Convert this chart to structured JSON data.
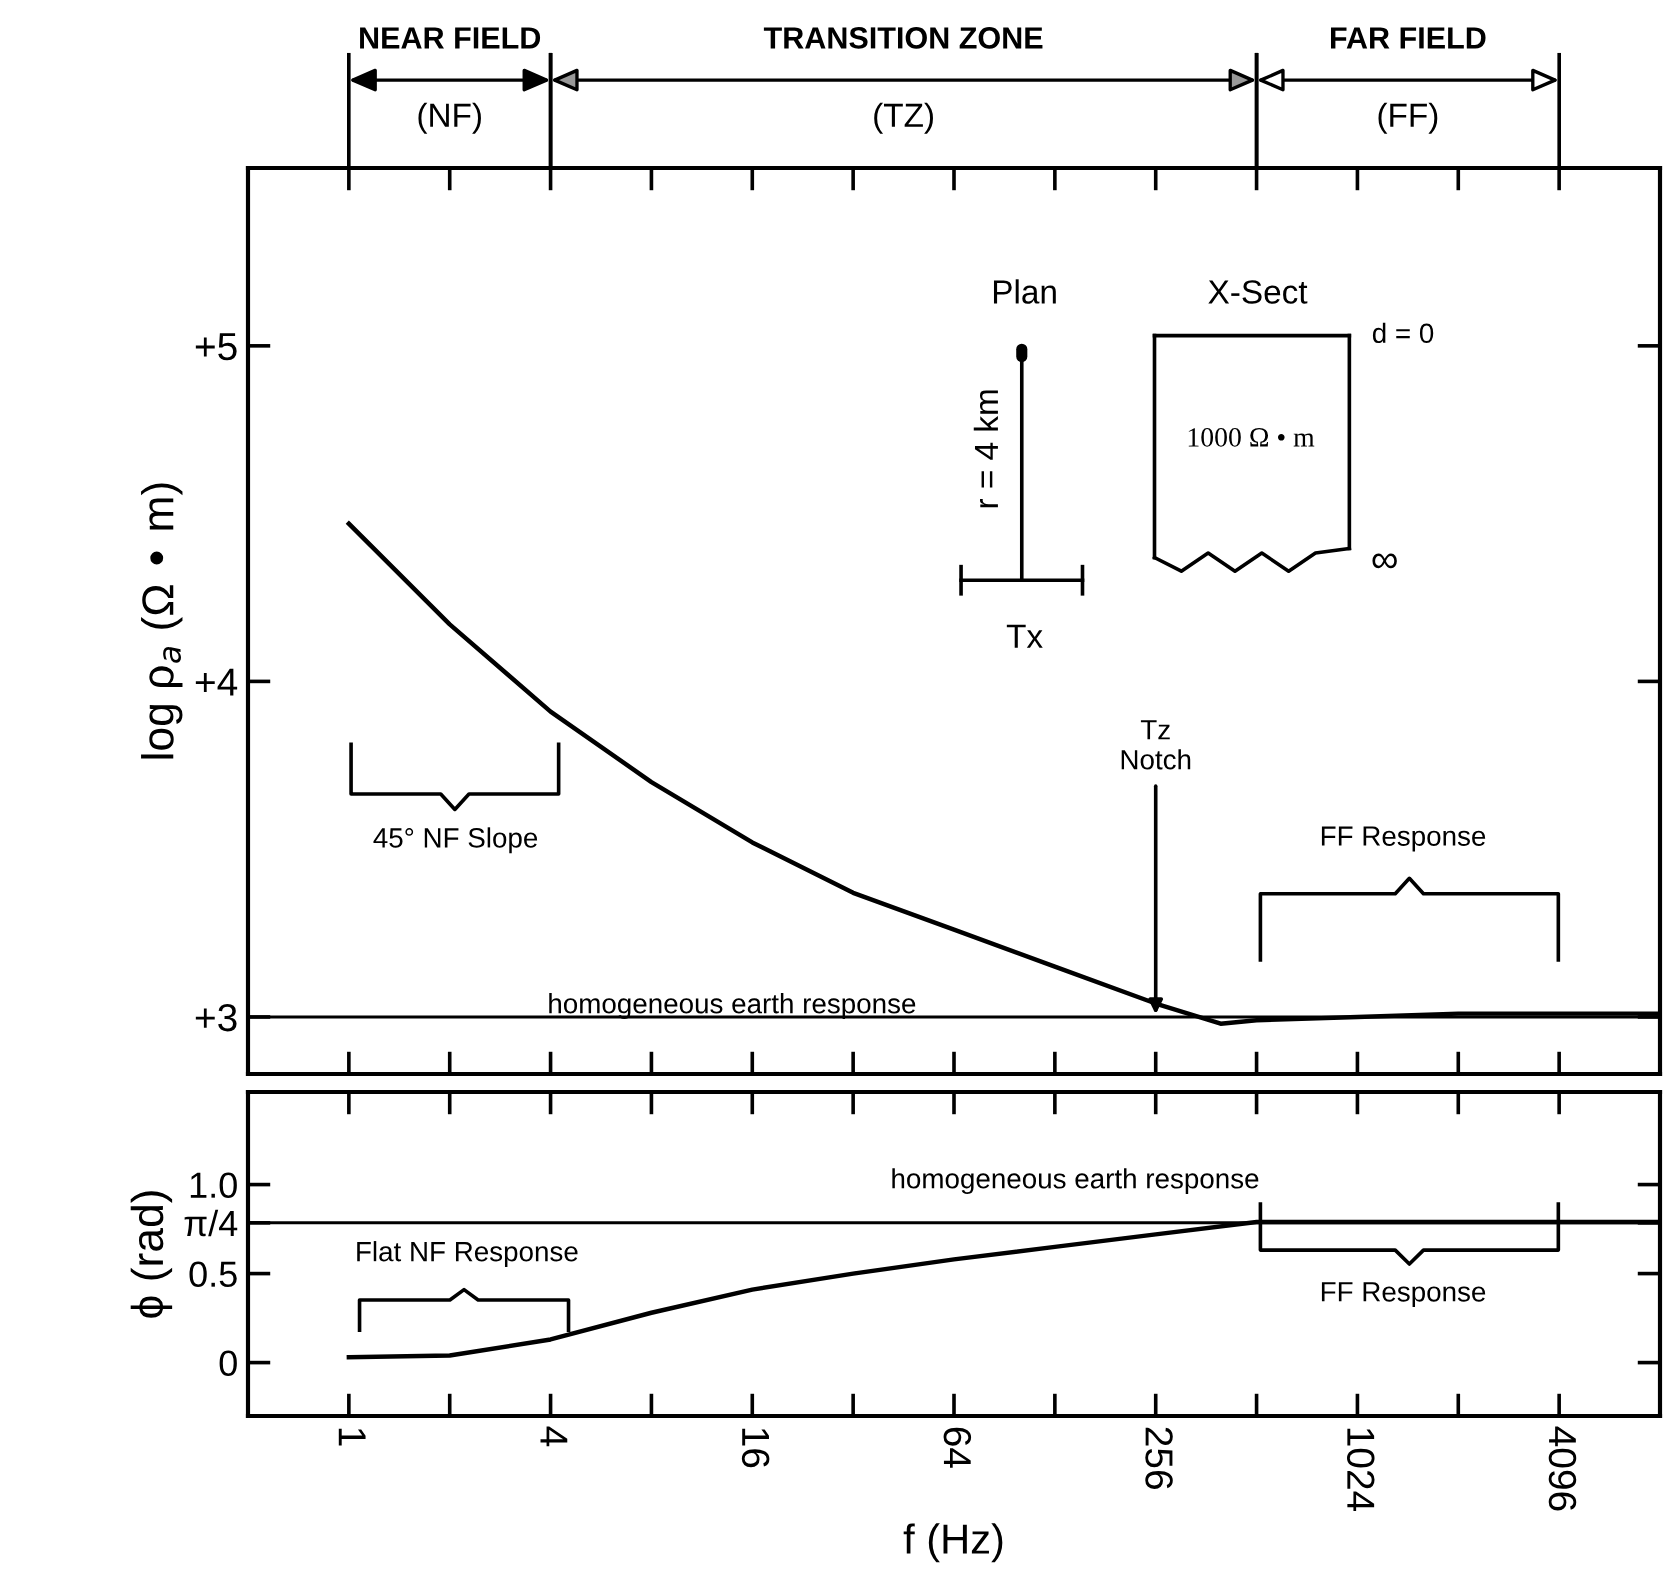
{
  "chart_data": [
    {
      "type": "line",
      "ylabel": "log ρ$_{a}$ (Ω • m)",
      "log": "x",
      "tick_labels": "y",
      "grid": false,
      "x": [
        1,
        2,
        4,
        8,
        16,
        32,
        64,
        128,
        256,
        400,
        512,
        1024,
        2048,
        4096,
        8192
      ],
      "series": [
        {
          "color": "#000000",
          "values": [
            4.47,
            4.17,
            3.91,
            3.7,
            3.52,
            3.37,
            3.26,
            3.15,
            3.04,
            2.98,
            2.99,
            3.0,
            3.01,
            3.01,
            3.01
          ]
        }
      ],
      "xlim": [
        0.5,
        8192
      ],
      "ylim": [
        2.83,
        5.53
      ],
      "xticks": [
        {
          "value": 1,
          "label": null
        },
        {
          "value": 2,
          "label": null
        },
        {
          "value": 4,
          "label": null
        },
        {
          "value": 8,
          "label": null
        },
        {
          "value": 16,
          "label": null
        },
        {
          "value": 32,
          "label": null
        },
        {
          "value": 64,
          "label": null
        },
        {
          "value": 128,
          "label": null
        },
        {
          "value": 256,
          "label": null
        },
        {
          "value": 512,
          "label": null
        },
        {
          "value": 1024,
          "label": null
        },
        {
          "value": 2048,
          "label": null
        },
        {
          "value": 4096,
          "label": null
        }
      ],
      "yticks": [
        {
          "value": 3,
          "label": "+3"
        },
        {
          "value": 4,
          "label": "+4"
        },
        {
          "value": 5,
          "label": "+5"
        }
      ],
      "ref_lines": [
        {
          "axis": "y",
          "value": 3,
          "label": "homogeneous earth response",
          "color": "#000000"
        }
      ],
      "annotations": [
        "NEAR FIELD\n(NF)",
        "TRANSITION ZONE\n(TZ)",
        "FAR FIELD\n(FF)",
        "Plan",
        "r = 4 km",
        "Tx",
        "X-Sect",
        "d = 0",
        "1000 Ω • m",
        "∞",
        "45° NF Slope",
        {
          "text": "Tz\nNotch",
          "x": 256,
          "y": 3.0
        },
        "FF Response"
      ]
    },
    {
      "type": "line",
      "ylabel": "ϕ (rad)",
      "xlabel": "f (Hz)",
      "log": "x",
      "grid": false,
      "x": [
        1,
        2,
        4,
        8,
        16,
        32,
        64,
        128,
        256,
        512,
        1024,
        2048,
        4096,
        8192
      ],
      "series": [
        {
          "color": "#000000",
          "values": [
            0.03,
            0.04,
            0.13,
            0.28,
            0.41,
            0.5,
            0.58,
            0.65,
            0.72,
            0.79,
            0.79,
            0.79,
            0.79,
            0.79
          ]
        }
      ],
      "xlim": [
        0.5,
        8192
      ],
      "ylim": [
        -0.3,
        1.52
      ],
      "xticks": [
        {
          "value": 1,
          "label": "1"
        },
        {
          "value": 2,
          "label": null
        },
        {
          "value": 4,
          "label": "4"
        },
        {
          "value": 8,
          "label": null
        },
        {
          "value": 16,
          "label": "16"
        },
        {
          "value": 32,
          "label": null
        },
        {
          "value": 64,
          "label": "64"
        },
        {
          "value": 128,
          "label": null
        },
        {
          "value": 256,
          "label": "256"
        },
        {
          "value": 512,
          "label": null
        },
        {
          "value": 1024,
          "label": "1024"
        },
        {
          "value": 2048,
          "label": null
        },
        {
          "value": 4096,
          "label": "4096"
        }
      ],
      "yticks": [
        0,
        {
          "value": 0.5,
          "label": "0.5"
        },
        {
          "value": 0.785,
          "label": "π/4"
        },
        {
          "value": 1.0,
          "label": "1.0"
        }
      ],
      "ref_lines": [
        {
          "axis": "y",
          "value": 0.785,
          "label": "homogeneous earth response",
          "color": "#000000"
        }
      ],
      "annotations": [
        "Flat NF Response",
        "FF Response"
      ]
    }
  ]
}
